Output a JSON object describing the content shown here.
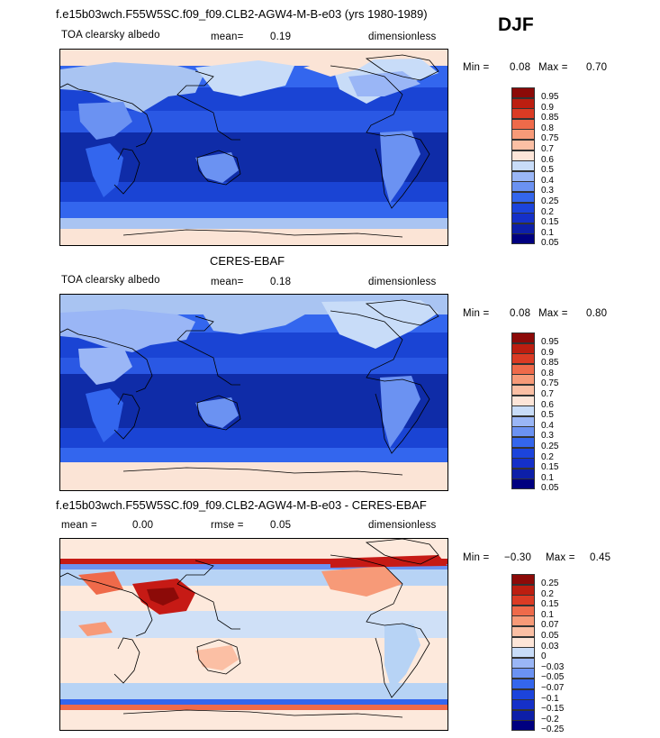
{
  "season": "DJF",
  "palette": {
    "ocean_dark": "#0f2ca8",
    "ocean_mid": "#1a44d4",
    "ocean_blue": "#3366ee",
    "land_light": "#a9c4f2",
    "snow": "#fbe4d6",
    "anom_neutral": "#fde9dc",
    "anom_red": "#c61a15",
    "anom_blue": "#b7d3f5"
  },
  "panels": [
    {
      "title": "f.e15b03wch.F55W5SC.f09_f09.CLB2-AGW4-M-B-e03 (yrs 1980-1989)",
      "variable": "TOA clearsky albedo",
      "stat1": "mean=",
      "stat1_value": "0.19",
      "units": "dimensionless",
      "min_label": "Min =",
      "min_value": "0.08",
      "max_label": "Max =",
      "max_value": "0.70",
      "colorbar": [
        "0.95",
        "0.9",
        "0.85",
        "0.8",
        "0.75",
        "0.7",
        "0.6",
        "0.5",
        "0.4",
        "0.3",
        "0.25",
        "0.2",
        "0.15",
        "0.1",
        "0.05"
      ]
    },
    {
      "title": "CERES-EBAF",
      "variable": "TOA clearsky albedo",
      "stat1": "mean=",
      "stat1_value": "0.18",
      "units": "dimensionless",
      "min_label": "Min =",
      "min_value": "0.08",
      "max_label": "Max =",
      "max_value": "0.80",
      "colorbar": [
        "0.95",
        "0.9",
        "0.85",
        "0.8",
        "0.75",
        "0.7",
        "0.6",
        "0.5",
        "0.4",
        "0.3",
        "0.25",
        "0.2",
        "0.15",
        "0.1",
        "0.05"
      ]
    },
    {
      "title": "f.e15b03wch.F55W5SC.f09_f09.CLB2-AGW4-M-B-e03 - CERES-EBAF",
      "stat1": "mean =",
      "stat1_value": "0.00",
      "stat2": "rmse =",
      "stat2_value": "0.05",
      "units": "dimensionless",
      "min_label": "Min =",
      "min_value": "−0.30",
      "max_label": "Max =",
      "max_value": "0.45",
      "colorbar": [
        "0.25",
        "0.2",
        "0.15",
        "0.1",
        "0.07",
        "0.05",
        "0.03",
        "0",
        "−0.03",
        "−0.05",
        "−0.07",
        "−0.1",
        "−0.15",
        "−0.2",
        "−0.25"
      ]
    }
  ],
  "chart_data": [
    {
      "type": "heatmap",
      "title": "f.e15b03wch.F55W5SC.f09_f09.CLB2-AGW4-M-B-e03 (yrs 1980-1989)",
      "variable": "TOA clearsky albedo",
      "mean": 0.19,
      "min": 0.08,
      "max": 0.7,
      "units": "dimensionless",
      "levels": [
        0.05,
        0.1,
        0.15,
        0.2,
        0.25,
        0.3,
        0.4,
        0.5,
        0.6,
        0.7,
        0.75,
        0.8,
        0.85,
        0.9,
        0.95
      ],
      "colors": [
        "#000080",
        "#0d1fa8",
        "#1530c8",
        "#1c44dc",
        "#3466ec",
        "#6b92f2",
        "#9ab6f6",
        "#c8dcf8",
        "#fde5d8",
        "#fbbfa4",
        "#f79a78",
        "#ef6a4a",
        "#db3b24",
        "#bc1e10",
        "#8c0a08"
      ]
    },
    {
      "type": "heatmap",
      "title": "CERES-EBAF",
      "variable": "TOA clearsky albedo",
      "mean": 0.18,
      "min": 0.08,
      "max": 0.8,
      "units": "dimensionless",
      "levels": [
        0.05,
        0.1,
        0.15,
        0.2,
        0.25,
        0.3,
        0.4,
        0.5,
        0.6,
        0.7,
        0.75,
        0.8,
        0.85,
        0.9,
        0.95
      ],
      "colors": [
        "#000080",
        "#0d1fa8",
        "#1530c8",
        "#1c44dc",
        "#3466ec",
        "#6b92f2",
        "#9ab6f6",
        "#c8dcf8",
        "#fde5d8",
        "#fbbfa4",
        "#f79a78",
        "#ef6a4a",
        "#db3b24",
        "#bc1e10",
        "#8c0a08"
      ]
    },
    {
      "type": "heatmap",
      "title": "f.e15b03wch.F55W5SC.f09_f09.CLB2-AGW4-M-B-e03 - CERES-EBAF",
      "mean": 0.0,
      "rmse": 0.05,
      "min": -0.3,
      "max": 0.45,
      "units": "dimensionless",
      "levels": [
        -0.25,
        -0.2,
        -0.15,
        -0.1,
        -0.07,
        -0.05,
        -0.03,
        0,
        0.03,
        0.05,
        0.07,
        0.1,
        0.15,
        0.2,
        0.25
      ],
      "colors": [
        "#000080",
        "#0d1fa8",
        "#1530c8",
        "#1c44dc",
        "#3466ec",
        "#6b92f2",
        "#9ab6f6",
        "#c8dcf8",
        "#fde5d8",
        "#fbbfa4",
        "#f79a78",
        "#ef6a4a",
        "#db3b24",
        "#bc1e10",
        "#8c0a08"
      ]
    }
  ]
}
